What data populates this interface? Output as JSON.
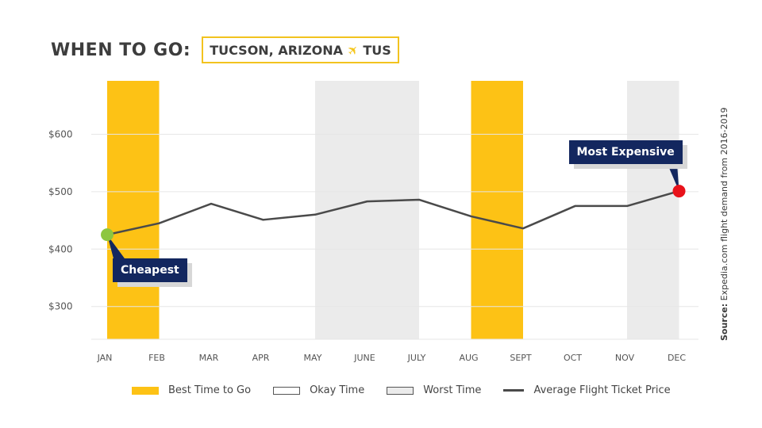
{
  "header": {
    "title": "WHEN TO GO:",
    "location": "TUCSON, ARIZONA",
    "airport": "TUS",
    "plane_icon": "airplane-icon"
  },
  "source": {
    "label": "Source:",
    "text": "Expedia.com flight demand from 2016-2019"
  },
  "colors": {
    "best": "#fdc215",
    "worst": "#ebebeb",
    "line": "#4a4a4a",
    "cheapest_dot": "#8dc63f",
    "expensive_dot": "#e8121a",
    "callout": "#13275f"
  },
  "callouts": {
    "cheapest": "Cheapest",
    "most_expensive": "Most Expensive"
  },
  "legend": [
    {
      "key": "best",
      "label": "Best Time to Go"
    },
    {
      "key": "okay",
      "label": "Okay Time"
    },
    {
      "key": "worst",
      "label": "Worst Time"
    },
    {
      "key": "line",
      "label": "Average Flight Ticket Price"
    }
  ],
  "chart_data": {
    "type": "line",
    "categories": [
      "JAN",
      "FEB",
      "MAR",
      "APR",
      "MAY",
      "JUNE",
      "JULY",
      "AUG",
      "SEPT",
      "OCT",
      "NOV",
      "DEC"
    ],
    "series": [
      {
        "name": "Average Flight Ticket Price",
        "values": [
          425,
          445,
          479,
          451,
          460,
          483,
          486,
          457,
          436,
          475,
          475,
          501
        ]
      }
    ],
    "ylim": [
      243,
      693
    ],
    "yticks": [
      300,
      400,
      500,
      600
    ],
    "ytick_labels": [
      "$300",
      "$400",
      "$500",
      "$600"
    ],
    "bands": [
      {
        "from": "JAN",
        "to": "FEB",
        "kind": "best"
      },
      {
        "from": "MAY",
        "to": "JULY",
        "kind": "worst"
      },
      {
        "from": "AUG",
        "to": "SEPT",
        "kind": "best"
      },
      {
        "from": "NOV",
        "to": "DEC",
        "kind": "worst"
      }
    ],
    "cheapest_month": "JAN",
    "most_expensive_month": "DEC",
    "grid": true
  }
}
